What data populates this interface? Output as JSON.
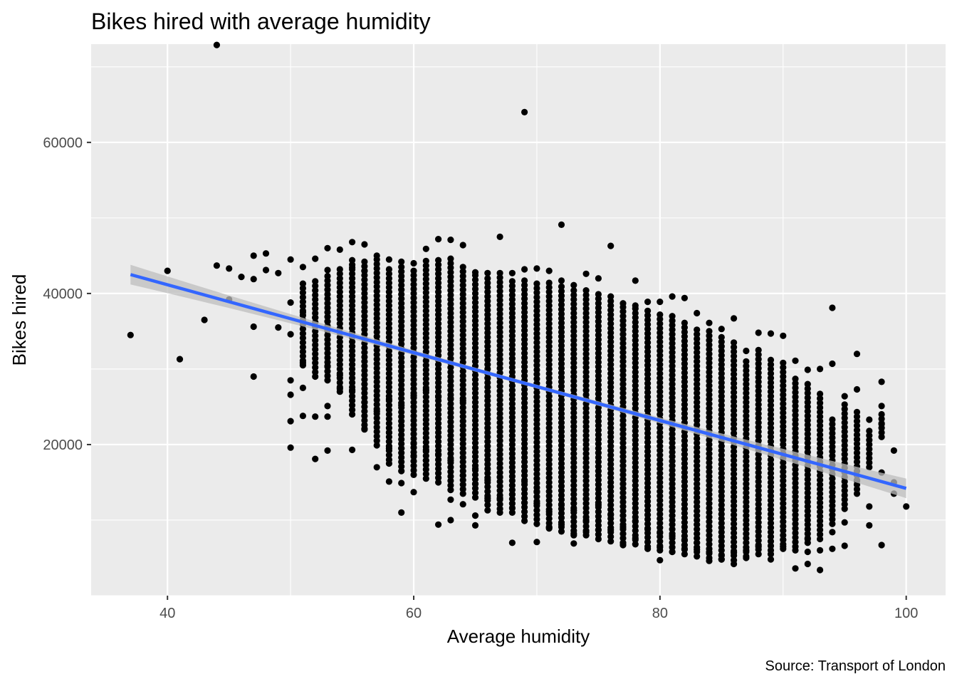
{
  "chart_data": {
    "type": "scatter",
    "title": "Bikes hired with average humidity",
    "xlabel": "Average humidity",
    "ylabel": "Bikes hired",
    "caption": "Source: Transport of London",
    "xlim": [
      33.8,
      103.2
    ],
    "ylim": [
      0,
      73000
    ],
    "x_ticks": [
      40,
      60,
      80,
      100
    ],
    "x_tick_labels": [
      "40",
      "60",
      "80",
      "100"
    ],
    "y_ticks": [
      20000,
      40000,
      60000
    ],
    "y_tick_labels": [
      "20000",
      "40000",
      "60000"
    ],
    "grid": true,
    "point_color": "#000000",
    "panel_color": "#ebebeb",
    "grid_color": "#ffffff",
    "trend": {
      "method": "linear",
      "color": "#3366ff",
      "band_color": "#bdbdbd",
      "x": [
        37,
        100
      ],
      "y": [
        42500,
        14200
      ],
      "band_halfwidth_ends": 1300,
      "band_halfwidth_mid": 250
    },
    "points": [
      [
        37,
        34500
      ],
      [
        40,
        43000
      ],
      [
        41,
        31300
      ],
      [
        43,
        36500
      ],
      [
        44,
        72900
      ],
      [
        44,
        43700
      ],
      [
        45,
        43300
      ],
      [
        45,
        39200
      ],
      [
        46,
        42200
      ],
      [
        47,
        45000
      ],
      [
        47,
        41900
      ],
      [
        47,
        35600
      ],
      [
        47,
        29000
      ],
      [
        48,
        45300
      ],
      [
        48,
        43100
      ],
      [
        49,
        42700
      ],
      [
        49,
        35500
      ],
      [
        50,
        44500
      ],
      [
        50,
        38800
      ],
      [
        50,
        34600
      ],
      [
        50,
        28500
      ],
      [
        50,
        26600
      ],
      [
        50,
        23100
      ],
      [
        50,
        19600
      ],
      [
        51,
        43500
      ],
      [
        51,
        37500
      ],
      [
        51,
        30800
      ],
      [
        51,
        27500
      ],
      [
        51,
        23800
      ],
      [
        52,
        44600
      ],
      [
        52,
        36800
      ],
      [
        52,
        23700
      ],
      [
        52,
        18100
      ],
      [
        53,
        46000
      ],
      [
        53,
        43100
      ],
      [
        53,
        30400
      ],
      [
        53,
        25100
      ],
      [
        53,
        23700
      ],
      [
        53,
        19200
      ],
      [
        54,
        45800
      ],
      [
        54,
        29200
      ],
      [
        54,
        27400
      ],
      [
        55,
        46800
      ],
      [
        55,
        43400
      ],
      [
        55,
        27200
      ],
      [
        55,
        19300
      ],
      [
        56,
        46500
      ],
      [
        56,
        43000
      ],
      [
        56,
        25600
      ],
      [
        56,
        22100
      ],
      [
        57,
        45000
      ],
      [
        57,
        24400
      ],
      [
        57,
        19900
      ],
      [
        57,
        17000
      ],
      [
        58,
        44500
      ],
      [
        58,
        26000
      ],
      [
        58,
        21600
      ],
      [
        58,
        19500
      ],
      [
        58,
        17500
      ],
      [
        58,
        15100
      ],
      [
        59,
        44200
      ],
      [
        59,
        25200
      ],
      [
        59,
        19500
      ],
      [
        59,
        14900
      ],
      [
        59,
        11000
      ],
      [
        60,
        44000
      ],
      [
        60,
        26500
      ],
      [
        60,
        20100
      ],
      [
        60,
        18500
      ],
      [
        60,
        13700
      ],
      [
        61,
        45900
      ],
      [
        61,
        27200
      ],
      [
        61,
        19300
      ],
      [
        61,
        17900
      ],
      [
        62,
        47200
      ],
      [
        62,
        26300
      ],
      [
        62,
        18700
      ],
      [
        62,
        9400
      ],
      [
        63,
        47100
      ],
      [
        63,
        26100
      ],
      [
        63,
        17900
      ],
      [
        63,
        12700
      ],
      [
        63,
        10000
      ],
      [
        64,
        46400
      ],
      [
        64,
        25800
      ],
      [
        64,
        15900
      ],
      [
        64,
        12100
      ],
      [
        65,
        42800
      ],
      [
        65,
        16800
      ],
      [
        65,
        14800
      ],
      [
        65,
        10600
      ],
      [
        65,
        9300
      ],
      [
        66,
        42700
      ],
      [
        66,
        15300
      ],
      [
        66,
        12900
      ],
      [
        66,
        11300
      ],
      [
        67,
        47500
      ],
      [
        67,
        42700
      ],
      [
        67,
        15700
      ],
      [
        67,
        12900
      ],
      [
        67,
        11000
      ],
      [
        68,
        42700
      ],
      [
        68,
        13400
      ],
      [
        68,
        11600
      ],
      [
        68,
        7000
      ],
      [
        69,
        64000
      ],
      [
        69,
        43200
      ],
      [
        69,
        15100
      ],
      [
        69,
        12300
      ],
      [
        69,
        9900
      ],
      [
        70,
        43300
      ],
      [
        70,
        13800
      ],
      [
        70,
        12200
      ],
      [
        70,
        7100
      ],
      [
        71,
        43000
      ],
      [
        71,
        11100
      ],
      [
        71,
        9100
      ],
      [
        71,
        8900
      ],
      [
        72,
        49100
      ],
      [
        72,
        41700
      ],
      [
        72,
        12000
      ],
      [
        72,
        9400
      ],
      [
        73,
        41100
      ],
      [
        73,
        11300
      ],
      [
        73,
        8200
      ],
      [
        73,
        6900
      ],
      [
        74,
        42600
      ],
      [
        74,
        12800
      ],
      [
        74,
        10000
      ],
      [
        74,
        8400
      ],
      [
        75,
        42000
      ],
      [
        75,
        12000
      ],
      [
        75,
        8700
      ],
      [
        76,
        46300
      ],
      [
        76,
        39600
      ],
      [
        76,
        10700
      ],
      [
        76,
        8700
      ],
      [
        77,
        38700
      ],
      [
        77,
        9100
      ],
      [
        77,
        6700
      ],
      [
        78,
        41700
      ],
      [
        78,
        38400
      ],
      [
        78,
        9900
      ],
      [
        78,
        7600
      ],
      [
        79,
        38900
      ],
      [
        79,
        8800
      ],
      [
        79,
        6200
      ],
      [
        80,
        38900
      ],
      [
        80,
        8300
      ],
      [
        80,
        6400
      ],
      [
        80,
        4700
      ],
      [
        81,
        39600
      ],
      [
        81,
        7900
      ],
      [
        81,
        5800
      ],
      [
        82,
        39400
      ],
      [
        82,
        7400
      ],
      [
        82,
        6200
      ],
      [
        83,
        37400
      ],
      [
        83,
        7000
      ],
      [
        83,
        6100
      ],
      [
        84,
        36100
      ],
      [
        84,
        5800
      ],
      [
        84,
        4600
      ],
      [
        85,
        35300
      ],
      [
        85,
        5300
      ],
      [
        85,
        4800
      ],
      [
        86,
        36700
      ],
      [
        86,
        5700
      ],
      [
        86,
        4200
      ],
      [
        87,
        32400
      ],
      [
        87,
        6000
      ],
      [
        87,
        5000
      ],
      [
        88,
        34800
      ],
      [
        88,
        6500
      ],
      [
        89,
        34700
      ],
      [
        89,
        5500
      ],
      [
        89,
        4800
      ],
      [
        90,
        34400
      ],
      [
        90,
        7400
      ],
      [
        90,
        6500
      ],
      [
        91,
        31100
      ],
      [
        91,
        6000
      ],
      [
        91,
        3600
      ],
      [
        92,
        29900
      ],
      [
        92,
        7500
      ],
      [
        92,
        5800
      ],
      [
        92,
        4200
      ],
      [
        93,
        30000
      ],
      [
        93,
        6000
      ],
      [
        93,
        3400
      ],
      [
        94,
        38100
      ],
      [
        94,
        30700
      ],
      [
        94,
        8400
      ],
      [
        94,
        6200
      ],
      [
        95,
        26400
      ],
      [
        95,
        9700
      ],
      [
        95,
        6600
      ],
      [
        96,
        32000
      ],
      [
        96,
        27300
      ],
      [
        96,
        20700
      ],
      [
        96,
        15200
      ],
      [
        97,
        23300
      ],
      [
        97,
        11800
      ],
      [
        97,
        9300
      ],
      [
        98,
        28300
      ],
      [
        98,
        25100
      ],
      [
        98,
        22700
      ],
      [
        98,
        16300
      ],
      [
        98,
        6700
      ],
      [
        99,
        19200
      ],
      [
        99,
        15000
      ],
      [
        99,
        13500
      ],
      [
        100,
        11800
      ]
    ],
    "dense_columns": [
      [
        51,
        30500,
        41500
      ],
      [
        52,
        29000,
        42000
      ],
      [
        53,
        28500,
        42500
      ],
      [
        54,
        27000,
        43500
      ],
      [
        55,
        24000,
        44500
      ],
      [
        56,
        22000,
        44500
      ],
      [
        57,
        20500,
        45000
      ],
      [
        58,
        18000,
        43500
      ],
      [
        59,
        16500,
        44000
      ],
      [
        60,
        16000,
        43500
      ],
      [
        61,
        15500,
        44500
      ],
      [
        62,
        15000,
        44500
      ],
      [
        63,
        14000,
        45000
      ],
      [
        64,
        13500,
        44000
      ],
      [
        65,
        13000,
        42500
      ],
      [
        66,
        12000,
        42500
      ],
      [
        67,
        11500,
        42500
      ],
      [
        68,
        11000,
        42000
      ],
      [
        69,
        10500,
        42000
      ],
      [
        70,
        9500,
        41500
      ],
      [
        71,
        9000,
        41500
      ],
      [
        72,
        8500,
        41000
      ],
      [
        73,
        8000,
        40500
      ],
      [
        74,
        8000,
        40500
      ],
      [
        75,
        7500,
        40000
      ],
      [
        76,
        7200,
        39000
      ],
      [
        77,
        7000,
        38500
      ],
      [
        78,
        6800,
        38000
      ],
      [
        79,
        6500,
        38000
      ],
      [
        80,
        6000,
        37500
      ],
      [
        81,
        5800,
        37500
      ],
      [
        82,
        5500,
        36500
      ],
      [
        83,
        5200,
        35500
      ],
      [
        84,
        5000,
        35000
      ],
      [
        85,
        4800,
        34500
      ],
      [
        86,
        4700,
        33500
      ],
      [
        87,
        5200,
        31500
      ],
      [
        88,
        5500,
        32500
      ],
      [
        89,
        6000,
        31500
      ],
      [
        90,
        6200,
        31000
      ],
      [
        91,
        6500,
        29000
      ],
      [
        92,
        7000,
        28000
      ],
      [
        93,
        7500,
        27000
      ],
      [
        94,
        9500,
        23500
      ],
      [
        95,
        11500,
        25500
      ],
      [
        96,
        13500,
        24500
      ],
      [
        97,
        17000,
        22000
      ],
      [
        98,
        21000,
        24000
      ]
    ]
  }
}
